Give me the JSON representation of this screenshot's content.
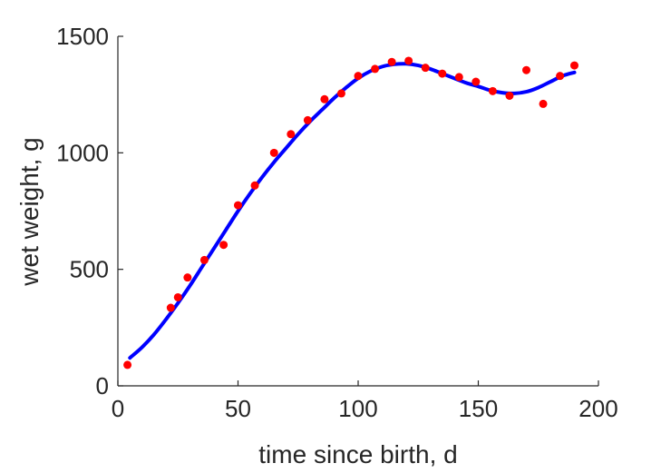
{
  "chart_data": {
    "type": "scatter",
    "title": "",
    "xlabel": "time since birth, d",
    "ylabel": "wet weight, g",
    "xlim": [
      0,
      200
    ],
    "ylim": [
      0,
      1500
    ],
    "xticks": [
      0,
      50,
      100,
      150,
      200
    ],
    "xtick_labels": [
      "0",
      "50",
      "100",
      "150",
      "200"
    ],
    "yticks": [
      0,
      500,
      1000,
      1500
    ],
    "ytick_labels": [
      "0",
      "500",
      "1000",
      "1500"
    ],
    "grid": false,
    "legend": "none",
    "series": [
      {
        "kind": "points",
        "color": "#ff0000",
        "x": [
          4,
          22,
          25,
          29,
          36,
          44,
          50,
          57,
          65,
          72,
          79,
          86,
          93,
          100,
          107,
          114,
          121,
          128,
          135,
          142,
          149,
          156,
          163,
          170,
          177,
          184,
          190
        ],
        "y": [
          90,
          335,
          380,
          465,
          540,
          605,
          775,
          860,
          1000,
          1080,
          1140,
          1230,
          1255,
          1330,
          1360,
          1390,
          1395,
          1365,
          1340,
          1325,
          1305,
          1265,
          1245,
          1355,
          1210,
          1330,
          1375
        ]
      },
      {
        "kind": "line",
        "color": "#0000ff",
        "x": [
          5,
          10,
          15,
          20,
          25,
          30,
          35,
          40,
          45,
          50,
          55,
          60,
          65,
          70,
          75,
          80,
          85,
          90,
          95,
          100,
          105,
          110,
          115,
          120,
          125,
          130,
          135,
          140,
          145,
          150,
          155,
          160,
          165,
          170,
          175,
          180,
          185,
          190
        ],
        "y": [
          120,
          165,
          220,
          285,
          355,
          430,
          510,
          590,
          670,
          750,
          825,
          895,
          960,
          1020,
          1080,
          1135,
          1185,
          1235,
          1280,
          1320,
          1350,
          1370,
          1380,
          1382,
          1375,
          1360,
          1340,
          1320,
          1300,
          1285,
          1268,
          1258,
          1255,
          1262,
          1280,
          1305,
          1330,
          1345
        ]
      }
    ]
  }
}
